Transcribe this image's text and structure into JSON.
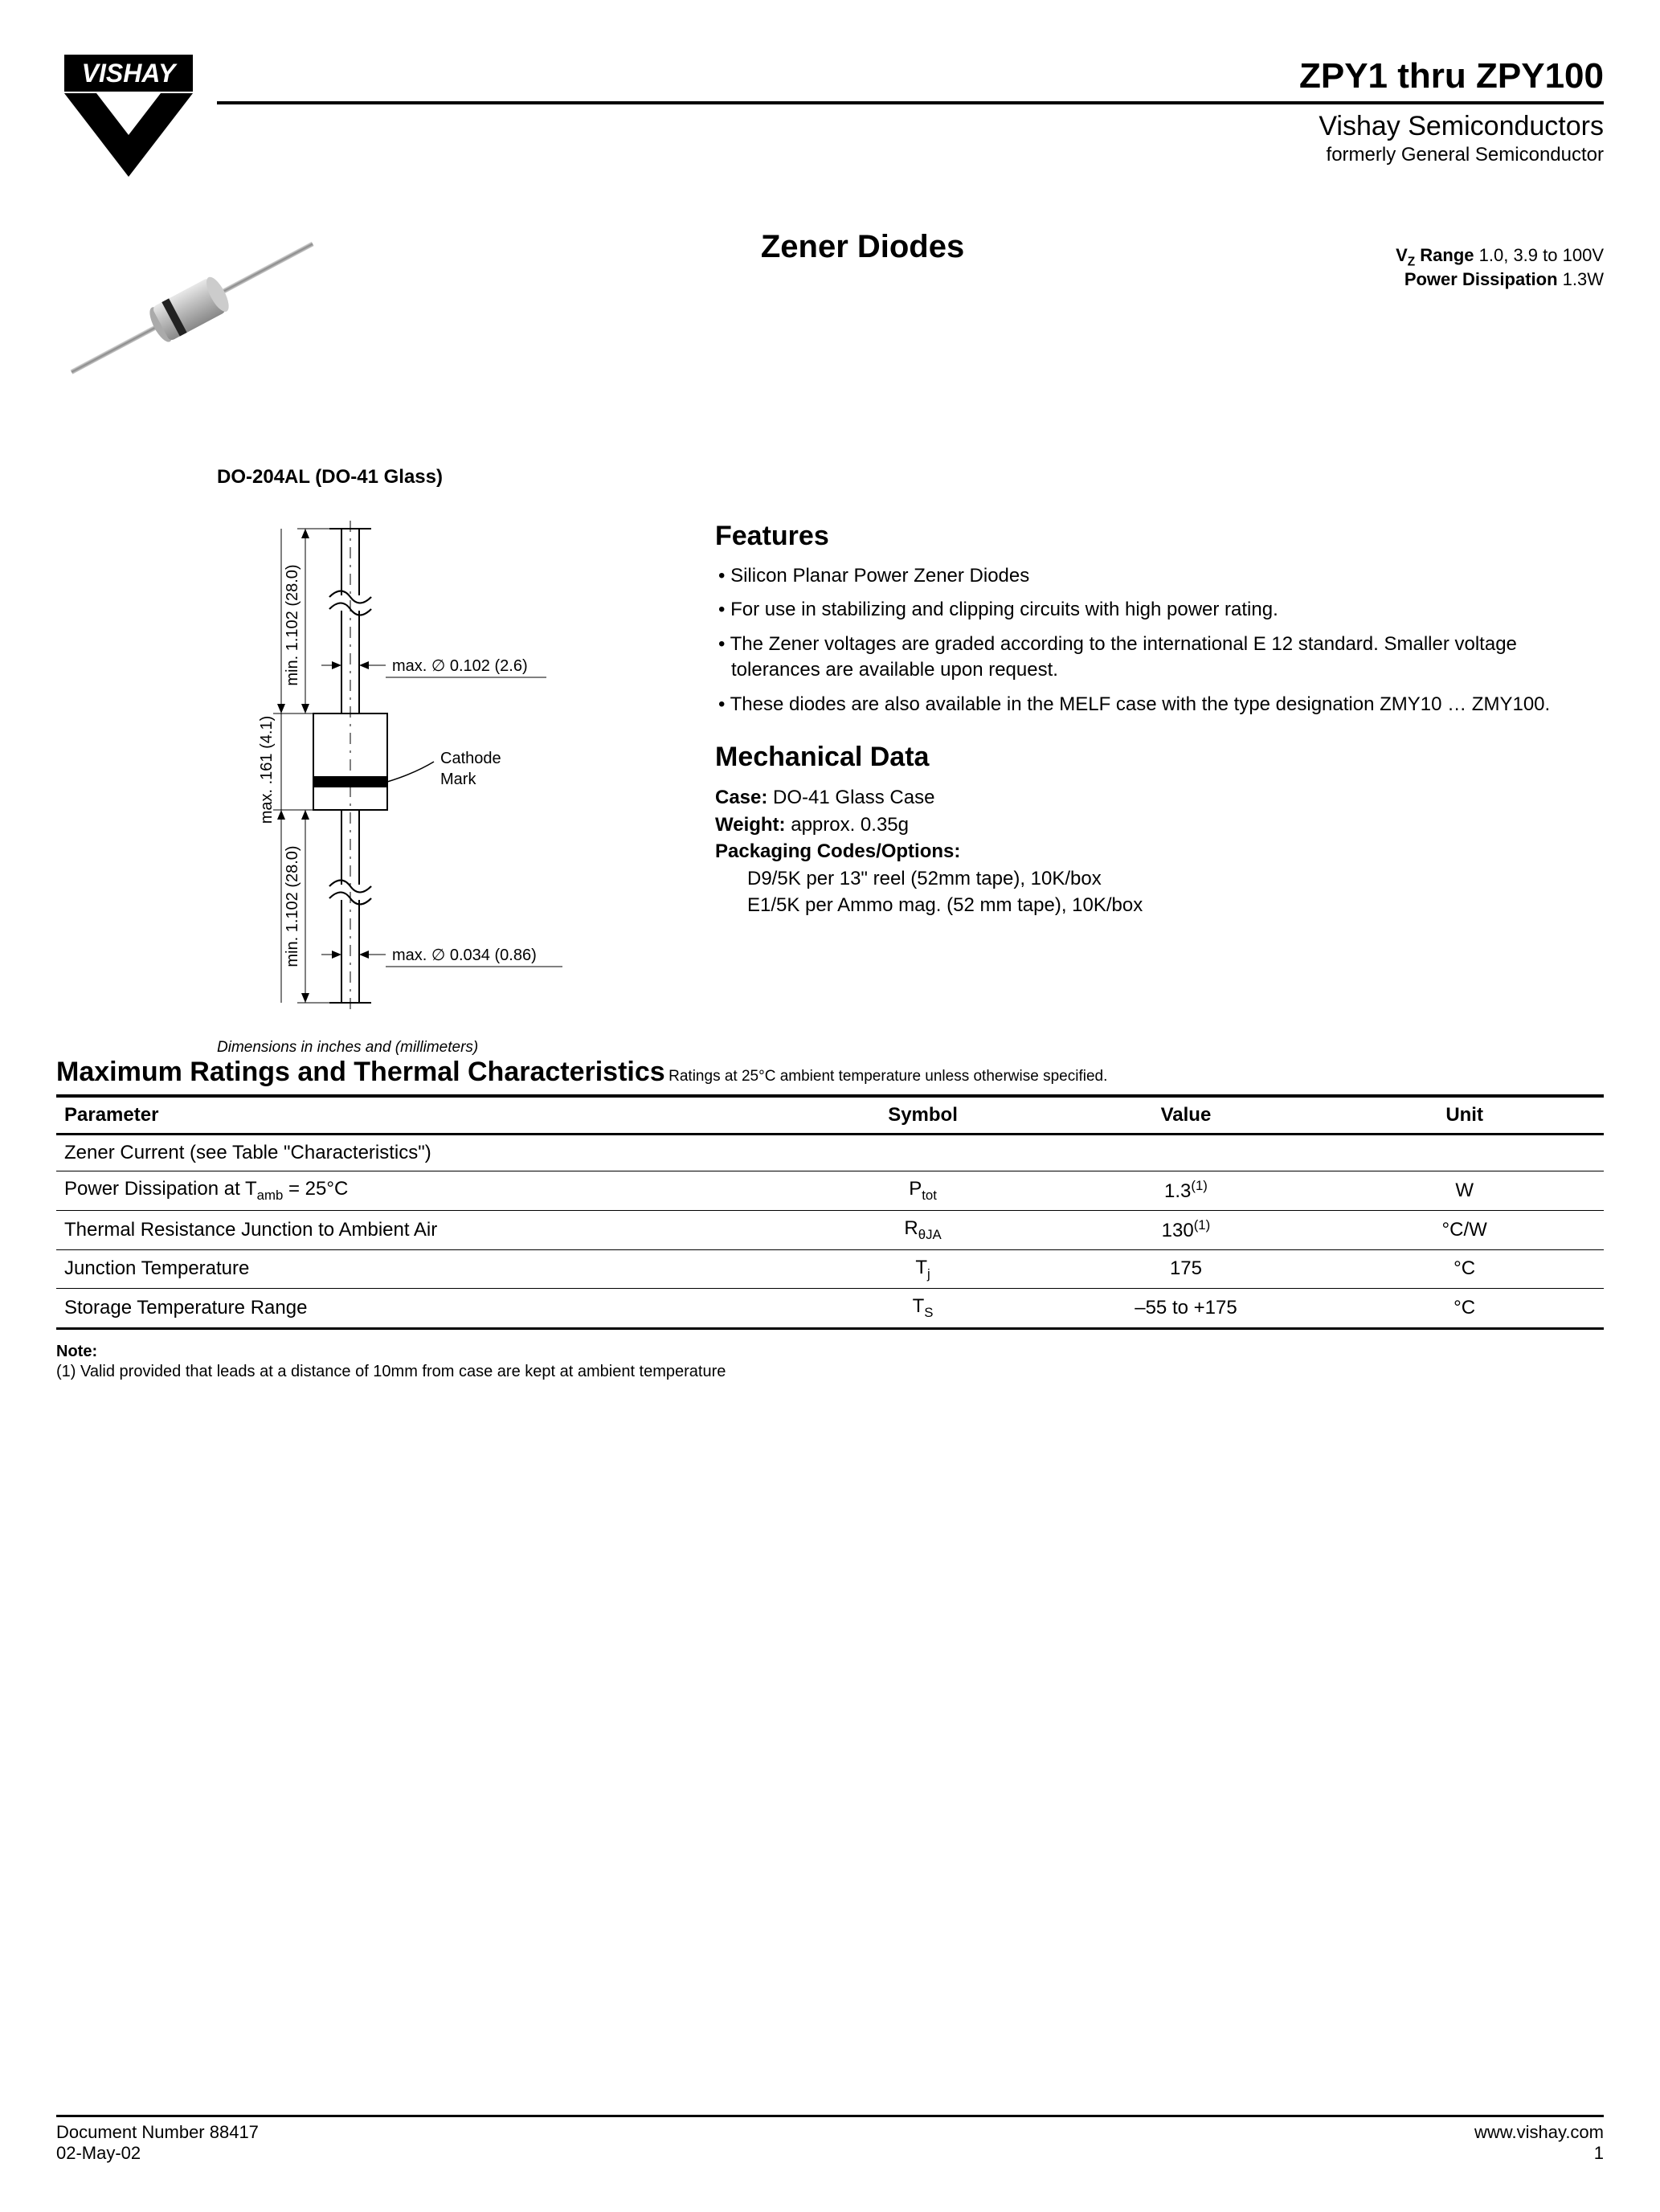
{
  "header": {
    "logo_text": "VISHAY",
    "part_range": "ZPY1 thru ZPY100",
    "company": "Vishay Semiconductors",
    "formerly": "formerly General Semiconductor",
    "product_title": "Zener Diodes",
    "vz_label": "V",
    "vz_sub": "Z",
    "vz_range_label": " Range",
    "vz_range_value": "  1.0, 3.9 to 100V",
    "pd_label": "Power Dissipation",
    "pd_value": "  1.3W"
  },
  "package": {
    "label": "DO-204AL (DO-41 Glass)",
    "dim_note": "Dimensions in inches and (millimeters)",
    "diagram": {
      "body_width_label": "max. .161 (4.1)",
      "lead_len_label": "min. 1.102 (28.0)",
      "lead_dia_upper": "max. ∅ 0.102 (2.6)",
      "cathode_label": "Cathode\nMark",
      "lead_dia_lower": "max. ∅ 0.034 (0.86)"
    }
  },
  "features": {
    "heading": "Features",
    "items": [
      "Silicon Planar Power Zener Diodes",
      "For use in stabilizing and clipping circuits with high power rating.",
      "The Zener voltages are graded according to the international E 12 standard. Smaller voltage tolerances are available upon request.",
      "These diodes are also available in the MELF case with the type designation ZMY10 … ZMY100."
    ]
  },
  "mechanical": {
    "heading": "Mechanical Data",
    "case_label": "Case:",
    "case_value": " DO-41 Glass Case",
    "weight_label": "Weight:",
    "weight_value": " approx. 0.35g",
    "packaging_label": "Packaging Codes/Options:",
    "packaging_lines": [
      "D9/5K per 13\" reel (52mm tape), 10K/box",
      "E1/5K per Ammo mag. (52 mm tape), 10K/box"
    ]
  },
  "ratings": {
    "heading": "Maximum Ratings and Thermal Characteristics",
    "sub": " Ratings at 25°C ambient temperature unless otherwise specified.",
    "columns": [
      "Parameter",
      "Symbol",
      "Value",
      "Unit"
    ],
    "rows": [
      {
        "param": "Zener Current (see Table \"Characteristics\")",
        "symbol": "",
        "value": "",
        "unit": ""
      },
      {
        "param_html": "Power Dissipation at T<sub>amb</sub> = 25°C",
        "symbol_html": "P<sub>tot</sub>",
        "value_html": "1.3<sup>(1)</sup>",
        "unit": "W"
      },
      {
        "param": "Thermal Resistance Junction to Ambient Air",
        "symbol_html": "R<sub>θJA</sub>",
        "value_html": "130<sup>(1)</sup>",
        "unit": "°C/W"
      },
      {
        "param": "Junction Temperature",
        "symbol_html": "T<sub>j</sub>",
        "value": "175",
        "unit": "°C"
      },
      {
        "param": "Storage Temperature Range",
        "symbol_html": "T<sub>S</sub>",
        "value": "–55 to +175",
        "unit": "°C"
      }
    ],
    "note_heading": "Note:",
    "note_text": "(1) Valid provided that leads at a distance of 10mm from case are kept at ambient temperature"
  },
  "footer": {
    "doc_number": "Document Number 88417",
    "date": "02-May-02",
    "url": "www.vishay.com",
    "page": "1"
  }
}
